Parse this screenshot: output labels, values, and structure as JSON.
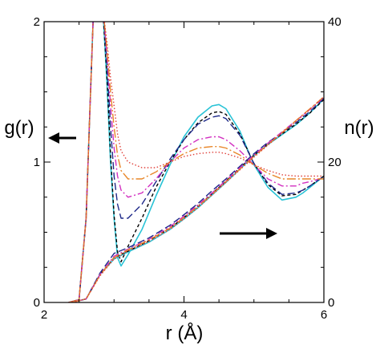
{
  "chart_data": {
    "type": "line",
    "xlabel": "r (Å)",
    "ylabel_left": "g(r)",
    "ylabel_right": "n(r)",
    "xlim": [
      2,
      6
    ],
    "ylim_left": [
      0,
      2
    ],
    "ylim_right": [
      0,
      40
    ],
    "x_ticks": [
      "2",
      "4",
      "6"
    ],
    "y_left_ticks": [
      "0",
      "1",
      "2"
    ],
    "y_right_ticks": [
      "0",
      "20",
      "40"
    ],
    "grid": false,
    "annotations": [
      {
        "type": "arrow",
        "direction": "left",
        "points_to": "left axis",
        "near_curves": "g(r)"
      },
      {
        "type": "arrow",
        "direction": "right",
        "points_to": "right axis",
        "near_curves": "n(r)"
      }
    ],
    "series": [
      {
        "color": "#29c3d6",
        "dash": "solid",
        "axis": "left",
        "x": [
          2.35,
          2.5,
          2.6,
          2.65,
          2.7,
          2.75,
          2.8,
          2.85,
          2.9,
          2.95,
          3.0,
          3.05,
          3.1,
          3.2,
          3.4,
          3.6,
          3.8,
          4.0,
          4.2,
          4.4,
          4.5,
          4.6,
          4.8,
          5.0,
          5.2,
          5.4,
          5.6,
          5.7,
          5.8,
          6.0
        ],
        "y": [
          0,
          0.02,
          0.6,
          1.3,
          2.0,
          2.2,
          2.2,
          2.0,
          1.55,
          1.0,
          0.6,
          0.32,
          0.26,
          0.34,
          0.52,
          0.76,
          0.98,
          1.18,
          1.32,
          1.4,
          1.41,
          1.38,
          1.22,
          0.98,
          0.82,
          0.73,
          0.75,
          0.78,
          0.82,
          0.9
        ]
      },
      {
        "color": "#000000",
        "dash": "short-dash",
        "axis": "left",
        "x": [
          2.35,
          2.5,
          2.6,
          2.65,
          2.7,
          2.75,
          2.8,
          2.85,
          2.9,
          2.95,
          3.0,
          3.05,
          3.1,
          3.2,
          3.4,
          3.6,
          3.8,
          4.0,
          4.2,
          4.4,
          4.5,
          4.6,
          4.8,
          5.0,
          5.2,
          5.4,
          5.6,
          5.7,
          5.8,
          6.0
        ],
        "y": [
          0,
          0.02,
          0.6,
          1.3,
          2.0,
          2.2,
          2.2,
          2.0,
          1.6,
          1.05,
          0.62,
          0.36,
          0.29,
          0.4,
          0.6,
          0.82,
          1.0,
          1.16,
          1.28,
          1.35,
          1.36,
          1.34,
          1.2,
          0.99,
          0.84,
          0.76,
          0.77,
          0.8,
          0.83,
          0.9
        ]
      },
      {
        "color": "#1f2a8a",
        "dash": "long-dash",
        "axis": "left",
        "x": [
          2.35,
          2.5,
          2.6,
          2.65,
          2.7,
          2.75,
          2.8,
          2.85,
          2.9,
          2.95,
          3.0,
          3.05,
          3.1,
          3.2,
          3.4,
          3.6,
          3.8,
          4.0,
          4.2,
          4.4,
          4.5,
          4.6,
          4.8,
          5.0,
          5.2,
          5.4,
          5.6,
          5.7,
          5.8,
          6.0
        ],
        "y": [
          0,
          0.02,
          0.6,
          1.3,
          2.0,
          2.2,
          2.2,
          2.05,
          1.7,
          1.25,
          0.9,
          0.7,
          0.6,
          0.6,
          0.7,
          0.86,
          1.02,
          1.16,
          1.27,
          1.32,
          1.33,
          1.31,
          1.19,
          0.99,
          0.85,
          0.77,
          0.78,
          0.8,
          0.83,
          0.9
        ]
      },
      {
        "color": "#d22fc0",
        "dash": "dash-dot",
        "axis": "left",
        "x": [
          2.35,
          2.5,
          2.6,
          2.65,
          2.7,
          2.75,
          2.8,
          2.85,
          2.9,
          2.95,
          3.0,
          3.05,
          3.1,
          3.2,
          3.4,
          3.6,
          3.8,
          4.0,
          4.2,
          4.4,
          4.5,
          4.6,
          4.8,
          5.0,
          5.2,
          5.4,
          5.6,
          5.7,
          5.8,
          6.0
        ],
        "y": [
          0,
          0.02,
          0.6,
          1.3,
          2.0,
          2.2,
          2.2,
          2.05,
          1.75,
          1.4,
          1.1,
          0.9,
          0.8,
          0.75,
          0.78,
          0.88,
          1.0,
          1.1,
          1.16,
          1.18,
          1.18,
          1.16,
          1.08,
          0.98,
          0.88,
          0.83,
          0.83,
          0.85,
          0.86,
          0.89
        ]
      },
      {
        "color": "#e8872a",
        "dash": "long-dash-dot",
        "axis": "left",
        "x": [
          2.35,
          2.5,
          2.6,
          2.65,
          2.7,
          2.75,
          2.8,
          2.85,
          2.9,
          2.95,
          3.0,
          3.05,
          3.1,
          3.2,
          3.4,
          3.6,
          3.8,
          4.0,
          4.2,
          4.4,
          4.5,
          4.6,
          4.8,
          5.0,
          5.2,
          5.4,
          5.6,
          5.7,
          5.8,
          6.0
        ],
        "y": [
          0,
          0.02,
          0.6,
          1.3,
          2.0,
          2.2,
          2.2,
          2.05,
          1.8,
          1.5,
          1.25,
          1.05,
          0.94,
          0.88,
          0.88,
          0.93,
          1.0,
          1.06,
          1.1,
          1.11,
          1.11,
          1.1,
          1.05,
          0.98,
          0.92,
          0.88,
          0.88,
          0.88,
          0.88,
          0.88
        ]
      },
      {
        "color": "#e0413a",
        "dash": "dotted",
        "axis": "left",
        "x": [
          2.35,
          2.5,
          2.6,
          2.65,
          2.7,
          2.75,
          2.8,
          2.85,
          2.9,
          2.95,
          3.0,
          3.05,
          3.1,
          3.2,
          3.4,
          3.6,
          3.8,
          4.0,
          4.2,
          4.4,
          4.5,
          4.6,
          4.8,
          5.0,
          5.2,
          5.4,
          5.6,
          5.7,
          5.8,
          6.0
        ],
        "y": [
          0,
          0.02,
          0.6,
          1.3,
          2.0,
          2.2,
          2.2,
          2.05,
          1.85,
          1.6,
          1.4,
          1.2,
          1.08,
          1.0,
          0.96,
          0.96,
          1.0,
          1.04,
          1.06,
          1.07,
          1.07,
          1.06,
          1.03,
          0.98,
          0.94,
          0.91,
          0.9,
          0.9,
          0.9,
          0.9
        ]
      },
      {
        "color": "#29c3d6",
        "dash": "solid",
        "axis": "right",
        "x": [
          2.4,
          2.6,
          2.8,
          3.0,
          3.2,
          3.5,
          3.8,
          4.0,
          4.2,
          4.4,
          4.6,
          4.8,
          5.0,
          5.2,
          5.4,
          5.6,
          5.8,
          6.0
        ],
        "y": [
          0,
          0.5,
          4.0,
          6.2,
          7.2,
          8.6,
          10.4,
          11.9,
          13.5,
          15.3,
          17.1,
          19.0,
          20.9,
          22.5,
          23.9,
          25.3,
          27.0,
          29.0
        ]
      },
      {
        "color": "#000000",
        "dash": "short-dash",
        "axis": "right",
        "x": [
          2.4,
          2.6,
          2.8,
          3.0,
          3.2,
          3.5,
          3.8,
          4.0,
          4.2,
          4.4,
          4.6,
          4.8,
          5.0,
          5.2,
          5.4,
          5.6,
          5.8,
          6.0
        ],
        "y": [
          0,
          0.5,
          4.0,
          6.4,
          7.3,
          8.8,
          10.6,
          12.1,
          13.7,
          15.5,
          17.3,
          19.2,
          21.0,
          22.6,
          24.0,
          25.4,
          27.0,
          28.9
        ]
      },
      {
        "color": "#1f2a8a",
        "dash": "long-dash",
        "axis": "right",
        "x": [
          2.4,
          2.6,
          2.8,
          3.0,
          3.2,
          3.5,
          3.8,
          4.0,
          4.2,
          4.4,
          4.6,
          4.8,
          5.0,
          5.2,
          5.4,
          5.6,
          5.8,
          6.0
        ],
        "y": [
          0,
          0.5,
          4.2,
          7.0,
          7.8,
          9.2,
          11.0,
          12.5,
          14.1,
          15.9,
          17.6,
          19.4,
          21.2,
          22.8,
          24.2,
          25.6,
          27.2,
          29.1
        ]
      },
      {
        "color": "#d22fc0",
        "dash": "dash-dot",
        "axis": "right",
        "x": [
          2.4,
          2.6,
          2.8,
          3.0,
          3.2,
          3.5,
          3.8,
          4.0,
          4.2,
          4.4,
          4.6,
          4.8,
          5.0,
          5.2,
          5.4,
          5.6,
          5.8,
          6.0
        ],
        "y": [
          0,
          0.5,
          4.0,
          6.6,
          7.6,
          9.0,
          10.8,
          12.3,
          13.9,
          15.6,
          17.4,
          19.2,
          21.0,
          22.7,
          24.3,
          25.9,
          27.5,
          29.2
        ]
      },
      {
        "color": "#e8872a",
        "dash": "long-dash-dot",
        "axis": "right",
        "x": [
          2.4,
          2.6,
          2.8,
          3.0,
          3.2,
          3.5,
          3.8,
          4.0,
          4.2,
          4.4,
          4.6,
          4.8,
          5.0,
          5.2,
          5.4,
          5.6,
          5.8,
          6.0
        ],
        "y": [
          0,
          0.5,
          3.9,
          6.4,
          7.5,
          8.9,
          10.6,
          12.1,
          13.7,
          15.4,
          17.2,
          19.0,
          20.8,
          22.5,
          24.2,
          25.9,
          27.6,
          29.3
        ]
      },
      {
        "color": "#e0413a",
        "dash": "dotted",
        "axis": "right",
        "x": [
          2.4,
          2.6,
          2.8,
          3.0,
          3.2,
          3.5,
          3.8,
          4.0,
          4.2,
          4.4,
          4.6,
          4.8,
          5.0,
          5.2,
          5.4,
          5.6,
          5.8,
          6.0
        ],
        "y": [
          0,
          0.5,
          3.8,
          6.2,
          7.3,
          8.7,
          10.4,
          11.9,
          13.5,
          15.3,
          17.1,
          18.9,
          20.7,
          22.4,
          24.1,
          25.8,
          27.5,
          29.3
        ]
      }
    ]
  }
}
